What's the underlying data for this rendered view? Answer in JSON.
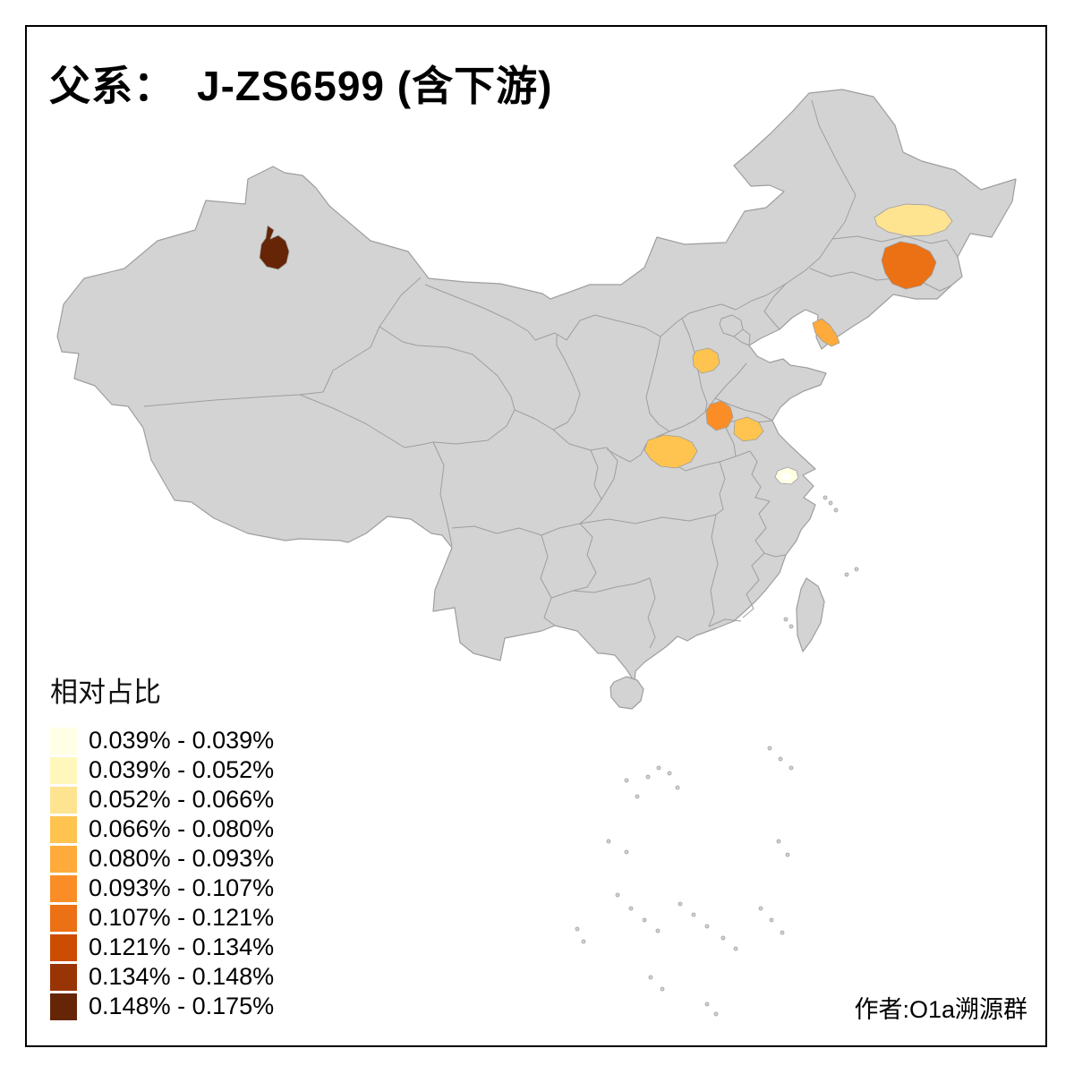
{
  "title": "父系：　J-ZS6599 (含下游)",
  "author": "作者:O1a溯源群",
  "legend": {
    "title": "相对占比"
  },
  "map_style": {
    "base_fill": "#d3d3d3",
    "boundary_color": "#9e9e9e",
    "lake_color": "#ffffff",
    "frame_color": "#000000",
    "background": "#ffffff"
  },
  "chart_data": {
    "type": "choropleth",
    "geography": "china-provinces-and-prefectures",
    "title": "父系：　J-ZS6599 (含下游)",
    "legend_title": "相对占比",
    "legend_position": "bottom-left",
    "bins": [
      {
        "range": "0.039% - 0.039%",
        "color": "#ffffe5"
      },
      {
        "range": "0.039% - 0.052%",
        "color": "#fff7bc"
      },
      {
        "range": "0.052% - 0.066%",
        "color": "#fee391"
      },
      {
        "range": "0.066% - 0.080%",
        "color": "#fec44f"
      },
      {
        "range": "0.080% - 0.093%",
        "color": "#feab3b"
      },
      {
        "range": "0.093% - 0.107%",
        "color": "#fb8d27"
      },
      {
        "range": "0.107% - 0.121%",
        "color": "#ec7014"
      },
      {
        "range": "0.121% - 0.134%",
        "color": "#cc4c02"
      },
      {
        "range": "0.134% - 0.148%",
        "color": "#993404"
      },
      {
        "range": "0.148% - 0.175%",
        "color": "#662506"
      }
    ],
    "regions": [
      {
        "location": "northern-xinjiang",
        "range": "0.148% - 0.175%",
        "color": "#662506"
      },
      {
        "location": "central-heilongjiang",
        "range": "0.052% - 0.066%",
        "color": "#fee391"
      },
      {
        "location": "southern-heilongjiang",
        "range": "0.107% - 0.121%",
        "color": "#ec7014"
      },
      {
        "location": "liaodong-peninsula",
        "range": "0.080% - 0.093%",
        "color": "#feab3b"
      },
      {
        "location": "central-hebei",
        "range": "0.066% - 0.080%",
        "color": "#fec44f"
      },
      {
        "location": "northern-henan",
        "range": "0.093% - 0.107%",
        "color": "#fb8d27"
      },
      {
        "location": "henan-jiangsu-border",
        "range": "0.066% - 0.080%",
        "color": "#fec44f"
      },
      {
        "location": "southwestern-henan",
        "range": "0.066% - 0.080%",
        "color": "#fec44f"
      },
      {
        "location": "southern-jiangsu",
        "range": "0.039% - 0.039%",
        "color": "#ffffe5"
      }
    ]
  }
}
